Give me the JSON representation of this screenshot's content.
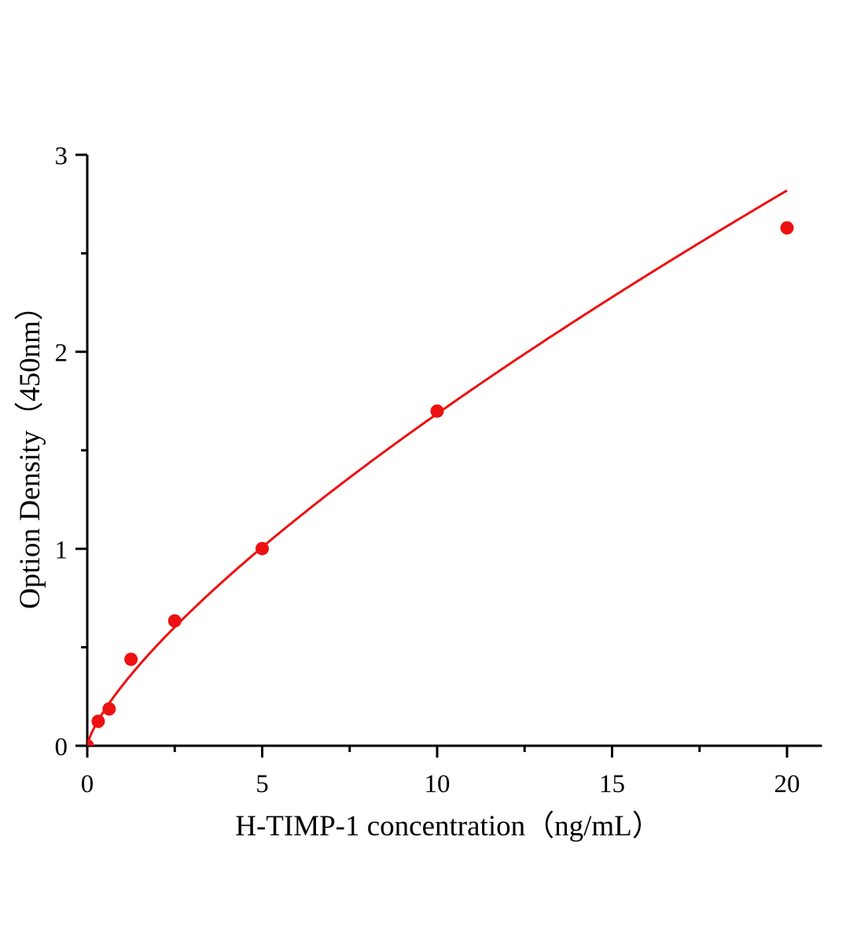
{
  "chart_data": {
    "type": "scatter",
    "title": "",
    "xlabel": "H-TIMP-1 concentration（ng/mL）",
    "ylabel": "Option Density（450nm）",
    "xlim": [
      0,
      21
    ],
    "ylim": [
      0,
      3
    ],
    "x_ticks": [
      0,
      5,
      10,
      15,
      20
    ],
    "y_ticks": [
      0,
      1,
      2,
      3
    ],
    "x_minor_step": 2.5,
    "y_minor_step": 0.5,
    "grid": false,
    "legend": "none",
    "fit_line": true,
    "color": "#ee1111",
    "series": [
      {
        "x": [
          0,
          0.3125,
          0.625,
          1.25,
          2.5,
          5,
          10,
          20
        ],
        "y": [
          0,
          0.124,
          0.187,
          0.439,
          0.634,
          1.001,
          1.699,
          2.629
        ]
      }
    ]
  }
}
